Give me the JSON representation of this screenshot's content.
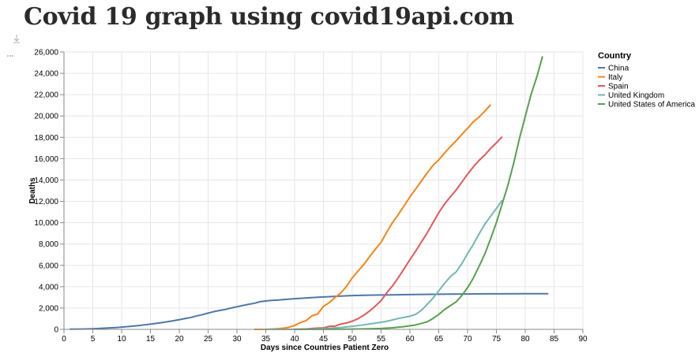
{
  "page": {
    "title": "Covid 19 graph using covid19api.com"
  },
  "chart_data": {
    "type": "line",
    "xlabel": "Days since Countries Patient Zero",
    "ylabel": "Deaths",
    "xlim": [
      0,
      90
    ],
    "ylim": [
      0,
      26000
    ],
    "x_ticks": [
      0,
      5,
      10,
      15,
      20,
      25,
      30,
      35,
      40,
      45,
      50,
      55,
      60,
      65,
      70,
      75,
      80,
      85,
      90
    ],
    "y_ticks": [
      0,
      2000,
      4000,
      6000,
      8000,
      10000,
      12000,
      14000,
      16000,
      18000,
      20000,
      22000,
      24000,
      26000
    ],
    "x_tick_labels": [
      "0",
      "5",
      "10",
      "15",
      "20",
      "25",
      "30",
      "35",
      "40",
      "45",
      "50",
      "55",
      "60",
      "65",
      "70",
      "75",
      "80",
      "85",
      "90"
    ],
    "y_tick_labels": [
      "0",
      "2,000",
      "4,000",
      "6,000",
      "8,000",
      "10,000",
      "12,000",
      "14,000",
      "16,000",
      "18,000",
      "20,000",
      "22,000",
      "24,000",
      "26,000"
    ],
    "grid": true,
    "legend": {
      "title": "Country",
      "position": "right"
    },
    "series": [
      {
        "name": "China",
        "color": "#4c78a8",
        "points": [
          [
            1,
            17
          ],
          [
            3,
            26
          ],
          [
            5,
            56
          ],
          [
            7,
            106
          ],
          [
            9,
            170
          ],
          [
            10,
            213
          ],
          [
            11,
            259
          ],
          [
            12,
            304
          ],
          [
            13,
            361
          ],
          [
            14,
            425
          ],
          [
            15,
            490
          ],
          [
            16,
            563
          ],
          [
            17,
            637
          ],
          [
            18,
            722
          ],
          [
            19,
            811
          ],
          [
            20,
            908
          ],
          [
            21,
            1016
          ],
          [
            22,
            1113
          ],
          [
            23,
            1259
          ],
          [
            24,
            1380
          ],
          [
            25,
            1523
          ],
          [
            26,
            1665
          ],
          [
            27,
            1770
          ],
          [
            28,
            1868
          ],
          [
            29,
            2004
          ],
          [
            30,
            2118
          ],
          [
            31,
            2236
          ],
          [
            32,
            2345
          ],
          [
            33,
            2442
          ],
          [
            34,
            2592
          ],
          [
            35,
            2663
          ],
          [
            36,
            2715
          ],
          [
            37,
            2744
          ],
          [
            38,
            2788
          ],
          [
            39,
            2835
          ],
          [
            40,
            2870
          ],
          [
            42,
            2943
          ],
          [
            44,
            3012
          ],
          [
            46,
            3070
          ],
          [
            48,
            3119
          ],
          [
            50,
            3169
          ],
          [
            52,
            3199
          ],
          [
            55,
            3226
          ],
          [
            58,
            3245
          ],
          [
            61,
            3270
          ],
          [
            64,
            3285
          ],
          [
            67,
            3304
          ],
          [
            70,
            3318
          ],
          [
            73,
            3331
          ],
          [
            76,
            3337
          ],
          [
            80,
            3340
          ],
          [
            84,
            3340
          ]
        ]
      },
      {
        "name": "Italy",
        "color": "#f58518",
        "points": [
          [
            33,
            2
          ],
          [
            35,
            12
          ],
          [
            36,
            29
          ],
          [
            37,
            52
          ],
          [
            38,
            107
          ],
          [
            39,
            197
          ],
          [
            40,
            366
          ],
          [
            41,
            631
          ],
          [
            42,
            827
          ],
          [
            43,
            1266
          ],
          [
            44,
            1441
          ],
          [
            45,
            2158
          ],
          [
            46,
            2503
          ],
          [
            47,
            2978
          ],
          [
            48,
            3405
          ],
          [
            49,
            4032
          ],
          [
            50,
            4825
          ],
          [
            51,
            5476
          ],
          [
            52,
            6077
          ],
          [
            53,
            6820
          ],
          [
            54,
            7503
          ],
          [
            55,
            8165
          ],
          [
            56,
            9134
          ],
          [
            57,
            10023
          ],
          [
            58,
            10779
          ],
          [
            59,
            11591
          ],
          [
            60,
            12428
          ],
          [
            61,
            13155
          ],
          [
            62,
            13915
          ],
          [
            63,
            14681
          ],
          [
            64,
            15362
          ],
          [
            65,
            15887
          ],
          [
            66,
            16523
          ],
          [
            67,
            17127
          ],
          [
            68,
            17669
          ],
          [
            69,
            18279
          ],
          [
            70,
            18849
          ],
          [
            71,
            19468
          ],
          [
            72,
            19899
          ],
          [
            73,
            20465
          ],
          [
            74,
            21067
          ]
        ]
      },
      {
        "name": "Spain",
        "color": "#e45756",
        "points": [
          [
            40,
            10
          ],
          [
            41,
            17
          ],
          [
            42,
            35
          ],
          [
            43,
            84
          ],
          [
            44,
            120
          ],
          [
            45,
            136
          ],
          [
            46,
            288
          ],
          [
            47,
            309
          ],
          [
            48,
            491
          ],
          [
            49,
            598
          ],
          [
            50,
            767
          ],
          [
            51,
            1002
          ],
          [
            52,
            1326
          ],
          [
            53,
            1720
          ],
          [
            54,
            2182
          ],
          [
            55,
            2696
          ],
          [
            56,
            3434
          ],
          [
            57,
            4089
          ],
          [
            58,
            4858
          ],
          [
            59,
            5690
          ],
          [
            60,
            6528
          ],
          [
            61,
            7340
          ],
          [
            62,
            8189
          ],
          [
            63,
            9053
          ],
          [
            64,
            10003
          ],
          [
            65,
            10935
          ],
          [
            66,
            11744
          ],
          [
            67,
            12418
          ],
          [
            68,
            13055
          ],
          [
            69,
            13798
          ],
          [
            70,
            14555
          ],
          [
            71,
            15238
          ],
          [
            72,
            15843
          ],
          [
            73,
            16353
          ],
          [
            74,
            16972
          ],
          [
            75,
            17489
          ],
          [
            76,
            18056
          ]
        ]
      },
      {
        "name": "United Kingdom",
        "color": "#72b7b2",
        "points": [
          [
            35,
            1
          ],
          [
            38,
            2
          ],
          [
            40,
            8
          ],
          [
            42,
            21
          ],
          [
            44,
            55
          ],
          [
            46,
            104
          ],
          [
            48,
            177
          ],
          [
            50,
            282
          ],
          [
            52,
            422
          ],
          [
            54,
            578
          ],
          [
            56,
            759
          ],
          [
            58,
            1019
          ],
          [
            60,
            1228
          ],
          [
            61,
            1408
          ],
          [
            62,
            1789
          ],
          [
            63,
            2352
          ],
          [
            64,
            2921
          ],
          [
            65,
            3605
          ],
          [
            66,
            4313
          ],
          [
            67,
            4934
          ],
          [
            68,
            5373
          ],
          [
            69,
            6159
          ],
          [
            70,
            7097
          ],
          [
            71,
            7978
          ],
          [
            72,
            8958
          ],
          [
            73,
            9875
          ],
          [
            74,
            10612
          ],
          [
            75,
            11329
          ],
          [
            76,
            12107
          ]
        ]
      },
      {
        "name": "United States of America",
        "color": "#54a24b",
        "points": [
          [
            40,
            1
          ],
          [
            43,
            6
          ],
          [
            46,
            11
          ],
          [
            49,
            22
          ],
          [
            51,
            41
          ],
          [
            53,
            58
          ],
          [
            55,
            86
          ],
          [
            57,
            149
          ],
          [
            59,
            260
          ],
          [
            61,
            418
          ],
          [
            63,
            706
          ],
          [
            64,
            1018
          ],
          [
            65,
            1400
          ],
          [
            66,
            1855
          ],
          [
            67,
            2216
          ],
          [
            68,
            2569
          ],
          [
            69,
            3170
          ],
          [
            70,
            3906
          ],
          [
            71,
            4811
          ],
          [
            72,
            5923
          ],
          [
            73,
            7081
          ],
          [
            74,
            8499
          ],
          [
            75,
            10013
          ],
          [
            76,
            11761
          ],
          [
            77,
            13528
          ],
          [
            78,
            15585
          ],
          [
            79,
            17898
          ],
          [
            80,
            19949
          ],
          [
            81,
            22007
          ],
          [
            82,
            23649
          ],
          [
            83,
            25604
          ]
        ]
      }
    ]
  }
}
